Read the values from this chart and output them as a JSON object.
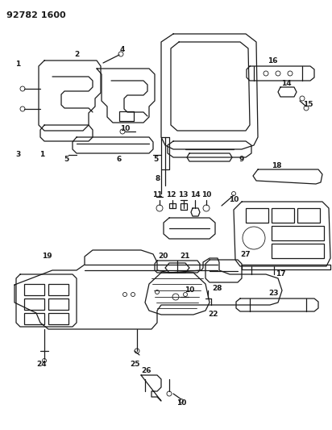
{
  "title": "92782 1600",
  "background_color": "#ffffff",
  "line_color": "#1a1a1a",
  "figsize": [
    4.12,
    5.33
  ],
  "dpi": 100
}
